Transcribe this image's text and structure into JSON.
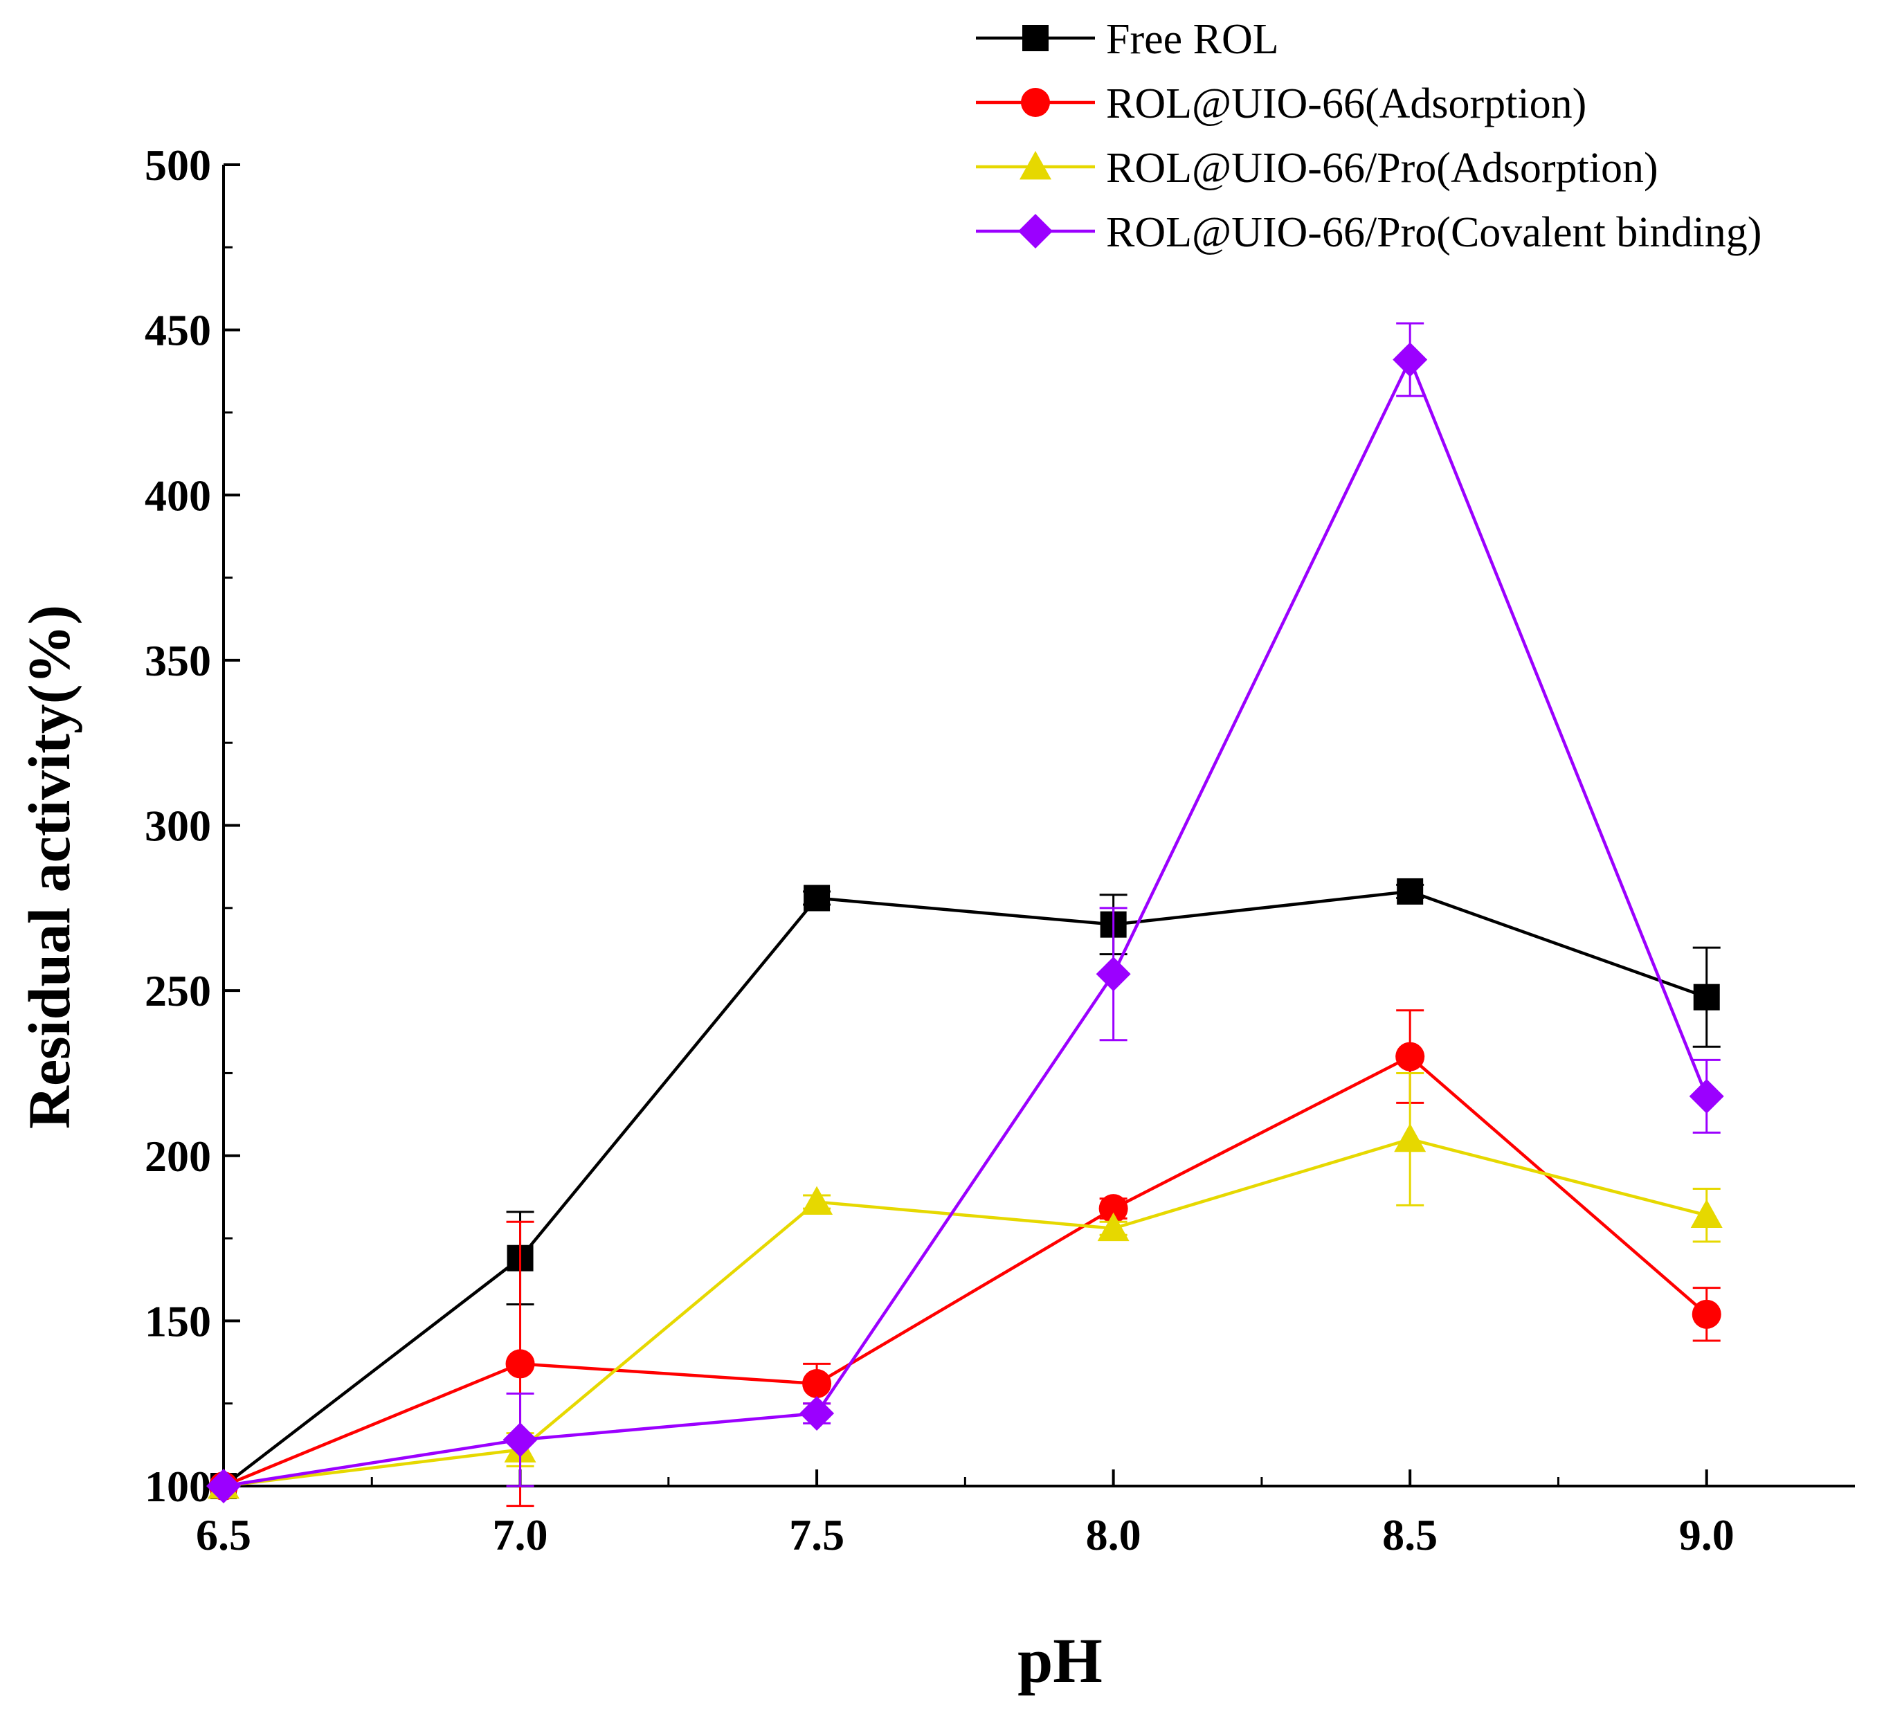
{
  "chart_data": {
    "type": "line",
    "title": "",
    "xlabel": "pH",
    "ylabel": "Residual activity(%)",
    "x": [
      6.5,
      7.0,
      7.5,
      8.0,
      8.5,
      9.0
    ],
    "x_tick_labels": [
      "6.5",
      "7.0",
      "7.5",
      "8.0",
      "8.5",
      "9.0"
    ],
    "y_ticks": [
      100,
      150,
      200,
      250,
      300,
      350,
      400,
      450,
      500
    ],
    "xlim": [
      6.5,
      9.25
    ],
    "ylim": [
      100,
      500
    ],
    "legend_position": "top-right",
    "series": [
      {
        "name": "Free ROL",
        "color": "#000000",
        "marker": "square",
        "values": [
          100,
          169,
          278,
          270,
          280,
          248
        ],
        "errors": [
          0,
          14,
          2,
          9,
          2,
          15
        ]
      },
      {
        "name": "ROL@UIO-66(Adsorption)",
        "color": "#ff0000",
        "marker": "circle",
        "values": [
          100,
          137,
          131,
          184,
          230,
          152
        ],
        "errors": [
          0,
          43,
          6,
          3,
          14,
          8
        ]
      },
      {
        "name": "ROL@UIO-66/Pro(Adsorption)",
        "color": "#e6d800",
        "marker": "triangle",
        "values": [
          100,
          111,
          186,
          178,
          205,
          182
        ],
        "errors": [
          0,
          5,
          2,
          2,
          20,
          8
        ]
      },
      {
        "name": "ROL@UIO-66/Pro(Covalent binding)",
        "color": "#9b00ff",
        "marker": "diamond",
        "values": [
          100,
          114,
          122,
          255,
          441,
          218
        ],
        "errors": [
          0,
          14,
          3,
          20,
          11,
          11
        ]
      }
    ]
  }
}
